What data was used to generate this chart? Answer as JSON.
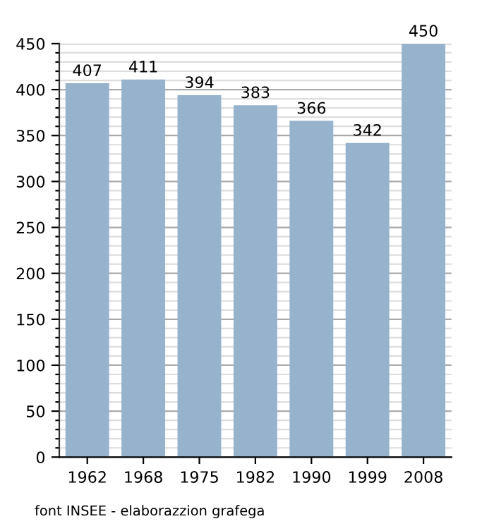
{
  "chart_data": {
    "type": "bar",
    "categories": [
      "1962",
      "1968",
      "1975",
      "1982",
      "1990",
      "1999",
      "2008"
    ],
    "values": [
      407,
      411,
      394,
      383,
      366,
      342,
      450
    ],
    "color": "#97b2cc",
    "data_labels": true,
    "ylim": [
      0,
      450
    ],
    "yticks": [
      0,
      {
        "value": 10,
        "label": null
      },
      {
        "value": 20,
        "label": null
      },
      {
        "value": 30,
        "label": null
      },
      {
        "value": 40,
        "label": null
      },
      50,
      {
        "value": 60,
        "label": null
      },
      {
        "value": 70,
        "label": null
      },
      {
        "value": 80,
        "label": null
      },
      {
        "value": 90,
        "label": null
      },
      100,
      {
        "value": 110,
        "label": null
      },
      {
        "value": 120,
        "label": null
      },
      {
        "value": 130,
        "label": null
      },
      {
        "value": 140,
        "label": null
      },
      150,
      {
        "value": 160,
        "label": null
      },
      {
        "value": 170,
        "label": null
      },
      {
        "value": 180,
        "label": null
      },
      {
        "value": 190,
        "label": null
      },
      200,
      {
        "value": 210,
        "label": null
      },
      {
        "value": 220,
        "label": null
      },
      {
        "value": 230,
        "label": null
      },
      {
        "value": 240,
        "label": null
      },
      250,
      {
        "value": 260,
        "label": null
      },
      {
        "value": 270,
        "label": null
      },
      {
        "value": 280,
        "label": null
      },
      {
        "value": 290,
        "label": null
      },
      300,
      {
        "value": 310,
        "label": null
      },
      {
        "value": 320,
        "label": null
      },
      {
        "value": 330,
        "label": null
      },
      {
        "value": 340,
        "label": null
      },
      350,
      {
        "value": 360,
        "label": null
      },
      {
        "value": 370,
        "label": null
      },
      {
        "value": 380,
        "label": null
      },
      {
        "value": 390,
        "label": null
      },
      400,
      {
        "value": 410,
        "label": null
      },
      {
        "value": 420,
        "label": null
      },
      {
        "value": 430,
        "label": null
      },
      {
        "value": 440,
        "label": null
      },
      450
    ],
    "grid": "y",
    "annotations": [
      "font INSEE - elaborazzion grafega"
    ]
  }
}
